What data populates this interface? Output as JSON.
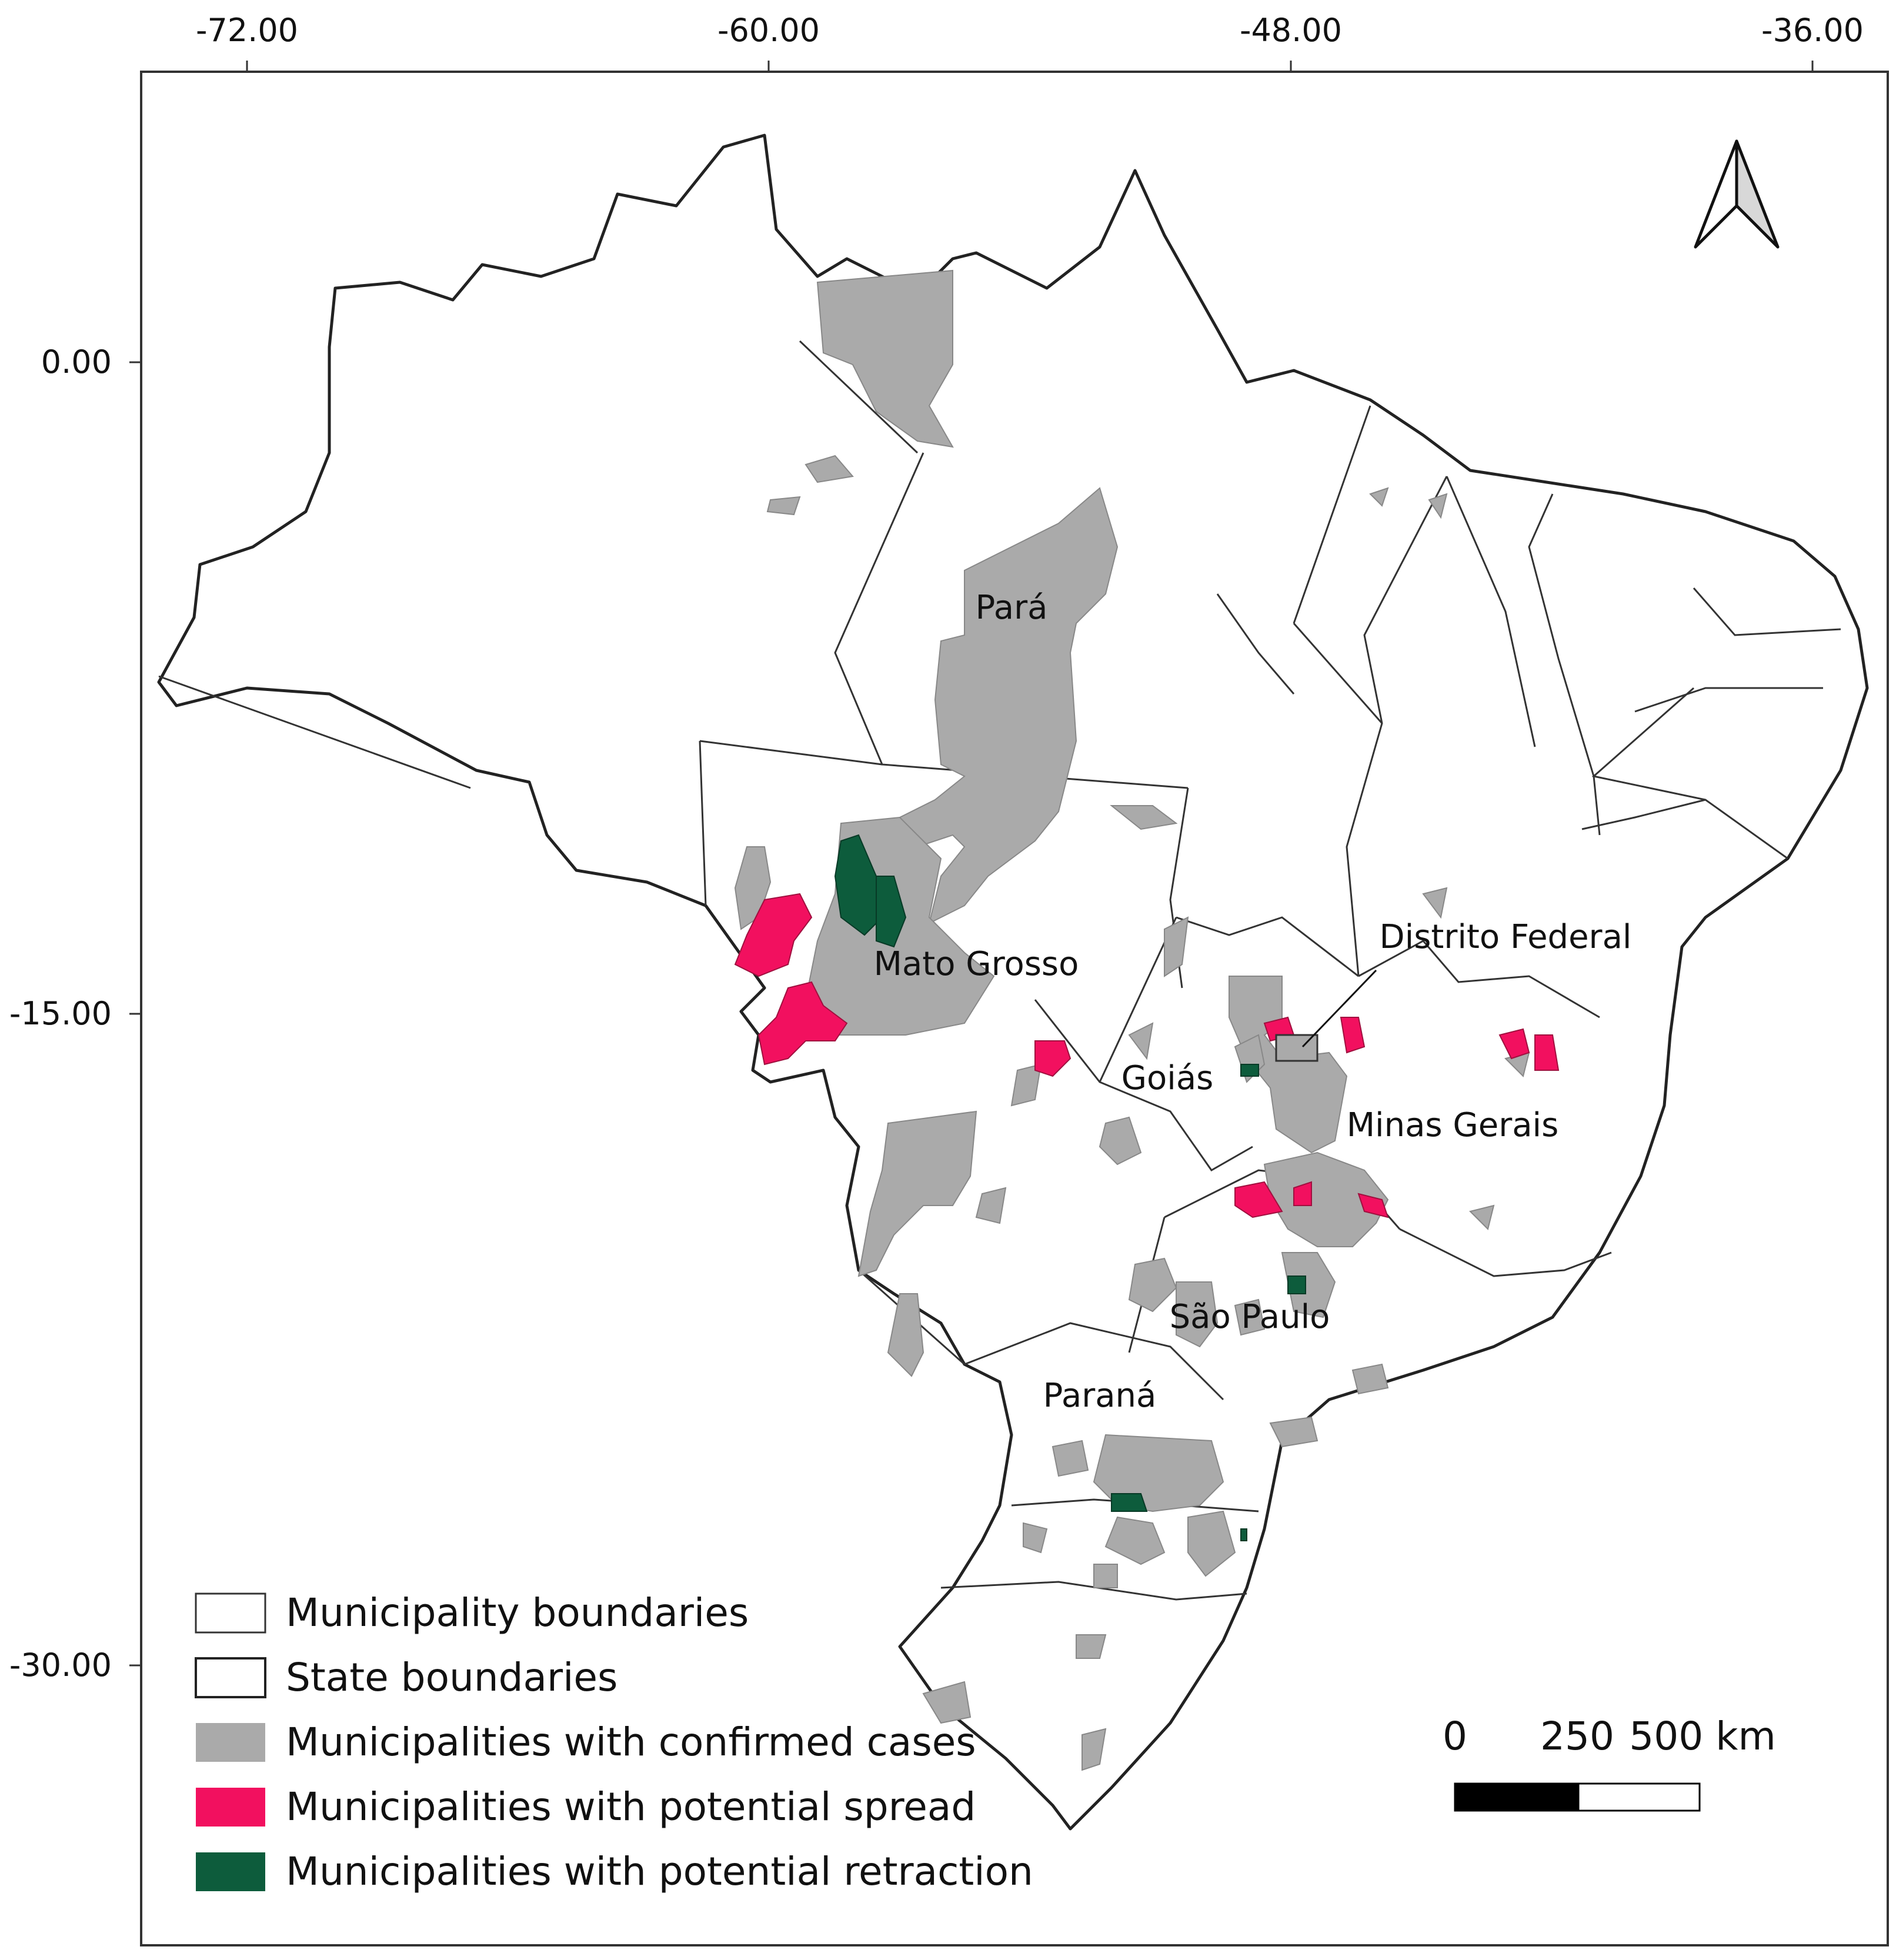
{
  "axes": {
    "x_ticks": [
      "-72.00",
      "-60.00",
      "-48.00",
      "-36.00"
    ],
    "y_ticks": [
      "0.00",
      "-15.00",
      "-30.00"
    ]
  },
  "state_labels": {
    "para": "Pará",
    "mato_grosso": "Mato Grosso",
    "distrito_federal": "Distrito Federal",
    "goias": "Goiás",
    "minas_gerais": "Minas Gerais",
    "sao_paulo": "São Paulo",
    "parana": "Paraná"
  },
  "legend": {
    "items": [
      {
        "label": "Municipality boundaries",
        "color": "#ffffff"
      },
      {
        "label": "State boundaries",
        "color": "#ffffff"
      },
      {
        "label": "Municipalities with confirmed cases",
        "color": "#aaaaaa"
      },
      {
        "label": "Municipalities with potential spread",
        "color": "#f2105f"
      },
      {
        "label": "Municipalities with potential retraction",
        "color": "#0d5c3c"
      }
    ]
  },
  "scale_bar": {
    "labels": [
      "0",
      "250",
      "500 km"
    ]
  },
  "north_arrow": "north-arrow-icon",
  "colors": {
    "confirmed": "#aaaaaa",
    "spread": "#f2105f",
    "retraction": "#0d5c3c",
    "boundary": "#222222"
  }
}
